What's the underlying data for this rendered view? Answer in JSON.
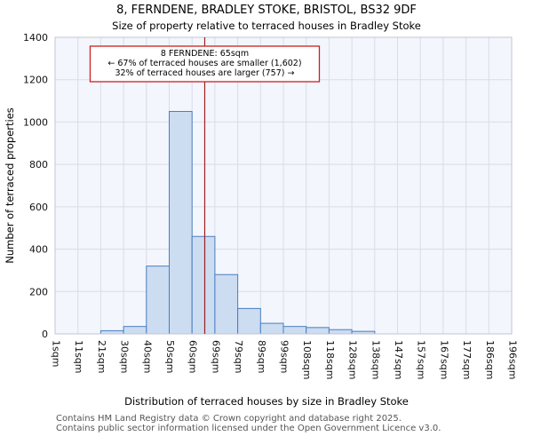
{
  "chart_data": {
    "type": "bar",
    "title": "8, FERNDENE, BRADLEY STOKE, BRISTOL, BS32 9DF",
    "subtitle": "Size of property relative to terraced houses in Bradley Stoke",
    "xlabel": "Distribution of terraced houses by size in Bradley Stoke",
    "ylabel": "Number of terraced properties",
    "ylim": [
      0,
      1400
    ],
    "yticks": [
      0,
      200,
      400,
      600,
      800,
      1000,
      1200,
      1400
    ],
    "categories": [
      "1sqm",
      "11sqm",
      "21sqm",
      "30sqm",
      "40sqm",
      "50sqm",
      "60sqm",
      "69sqm",
      "79sqm",
      "89sqm",
      "99sqm",
      "108sqm",
      "118sqm",
      "128sqm",
      "138sqm",
      "147sqm",
      "157sqm",
      "167sqm",
      "177sqm",
      "186sqm",
      "196sqm"
    ],
    "values": [
      0,
      0,
      15,
      35,
      320,
      1050,
      460,
      280,
      120,
      50,
      35,
      30,
      20,
      12,
      0,
      0,
      0,
      0,
      0,
      0
    ],
    "marker": {
      "sqm": 65
    },
    "annotation": {
      "line1": "8 FERNDENE: 65sqm",
      "line2": "← 67% of terraced houses are smaller (1,602)",
      "line3": "32% of terraced houses are larger (757) →"
    },
    "grid": true,
    "legend": false,
    "colors": {
      "bar_fill": "#ccdcf1",
      "bar_stroke": "#4a7fc1",
      "marker_line": "#a02020",
      "annotation_border": "#cc2020",
      "annotation_bg": "#ffffff",
      "grid": "#d8dde8",
      "plot_bg": "#f3f6fc",
      "plot_border": "#bfc6d4",
      "tick_text": "#111111"
    }
  },
  "footer": {
    "line1": "Contains HM Land Registry data © Crown copyright and database right 2025.",
    "line2": "Contains public sector information licensed under the Open Government Licence v3.0."
  }
}
